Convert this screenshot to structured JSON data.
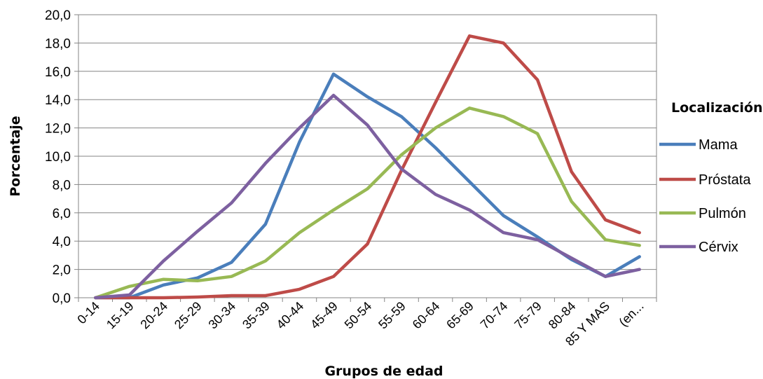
{
  "chart_data": {
    "type": "line",
    "xlabel": "Grupos de edad",
    "ylabel": "Porcentaje",
    "legend_title": "Localización",
    "legend_position": "right",
    "grid": true,
    "ylim": [
      0,
      20
    ],
    "y_ticks": [
      "0,0",
      "2,0",
      "4,0",
      "6,0",
      "8,0",
      "10,0",
      "12,0",
      "14,0",
      "16,0",
      "18,0",
      "20,0"
    ],
    "categories": [
      "0-14",
      "15-19",
      "20-24",
      "25-29",
      "30-34",
      "35-39",
      "40-44",
      "45-49",
      "50-54",
      "55-59",
      "60-64",
      "65-69",
      "70-74",
      "75-79",
      "80-84",
      "85 Y MAS",
      "(en..."
    ],
    "series": [
      {
        "name": "Mama",
        "color": "#4a7ebb",
        "values": [
          0.0,
          0.0,
          0.9,
          1.4,
          2.5,
          5.2,
          11.0,
          15.8,
          14.2,
          12.8,
          10.6,
          8.2,
          5.8,
          4.3,
          2.7,
          1.5,
          2.9
        ]
      },
      {
        "name": "Próstata",
        "color": "#be4b48",
        "values": [
          0.0,
          0.0,
          0.0,
          0.05,
          0.15,
          0.15,
          0.6,
          1.5,
          3.8,
          9.0,
          13.8,
          18.5,
          18.0,
          15.4,
          8.9,
          5.5,
          4.6
        ]
      },
      {
        "name": "Pulmón",
        "color": "#98b954",
        "values": [
          0.0,
          0.8,
          1.3,
          1.2,
          1.5,
          2.6,
          4.6,
          6.2,
          7.7,
          10.1,
          12.0,
          13.4,
          12.8,
          11.6,
          6.8,
          4.1,
          3.7
        ]
      },
      {
        "name": "Cérvix",
        "color": "#7d60a0",
        "values": [
          0.0,
          0.2,
          2.6,
          4.7,
          6.7,
          9.5,
          12.0,
          14.3,
          12.2,
          9.1,
          7.3,
          6.2,
          4.6,
          4.1,
          2.8,
          1.5,
          2.0
        ]
      }
    ]
  }
}
